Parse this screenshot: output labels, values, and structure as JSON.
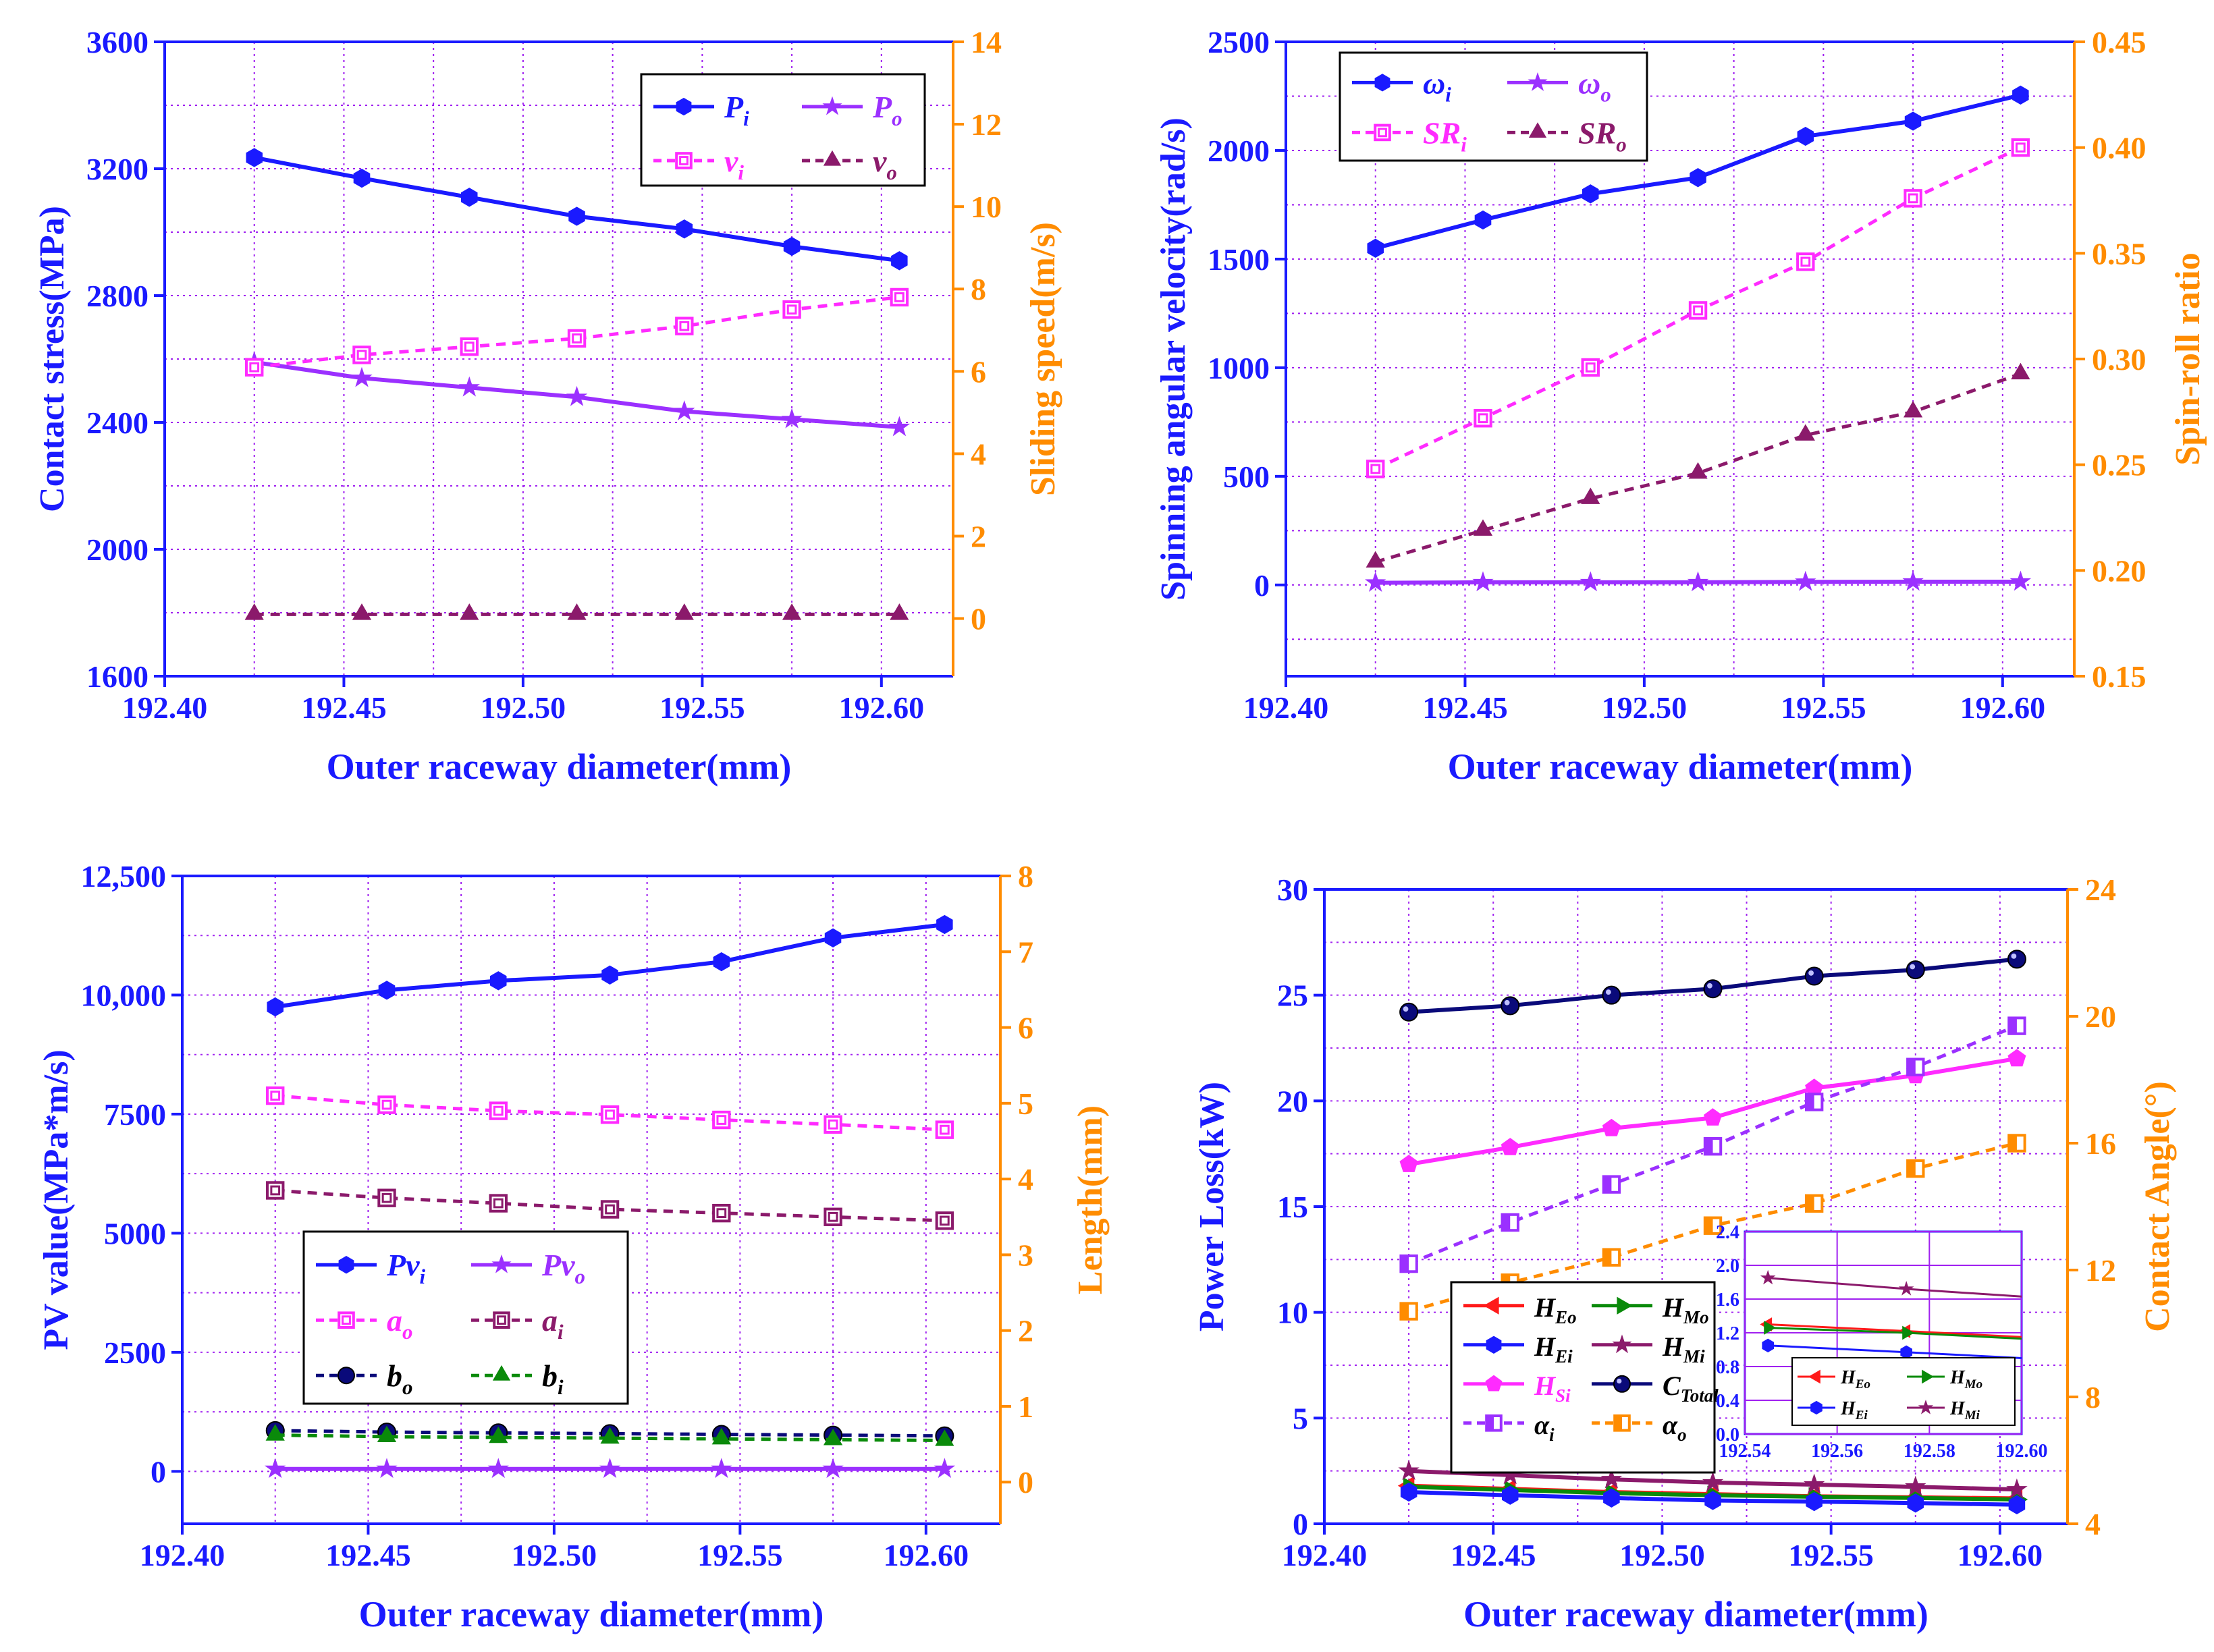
{
  "colors": {
    "axis_left": "#1a1aff",
    "axis_right": "#ff8c00",
    "grid": "#a020f0",
    "blue": "#1a1aff",
    "purple": "#9b30ff",
    "magenta": "#ff2bff",
    "darkmagenta": "#8b1a6b",
    "navy": "#0a0a7a",
    "green": "#0a8a0a",
    "red": "#ff1a1a",
    "orange": "#ff8c00",
    "black": "#000000"
  },
  "chart_data": [
    {
      "id": "a",
      "type": "line",
      "xlabel": "Outer raceway diameter(mm)",
      "ylabel": "Contact stress(MPa)",
      "y2label": "Sliding speed(m/s)",
      "xlim": [
        192.4,
        192.62
      ],
      "xticks": [
        "192.40",
        "192.45",
        "192.50",
        "192.55",
        "192.60"
      ],
      "ylim": [
        1600,
        3600
      ],
      "yticks": [
        "1600",
        "2000",
        "2400",
        "2800",
        "3200",
        "3600"
      ],
      "y2lim": [
        -1.4,
        14
      ],
      "y2ticks": [
        "0",
        "2",
        "4",
        "6",
        "8",
        "10",
        "12",
        "14"
      ],
      "x": [
        192.425,
        192.455,
        192.485,
        192.515,
        192.545,
        192.575,
        192.605
      ],
      "series": [
        {
          "name": "P",
          "sub": "i",
          "axis": "left",
          "color": "blue",
          "dash": false,
          "marker": "hexagon",
          "values": [
            3235,
            3170,
            3110,
            3050,
            3010,
            2955,
            2910
          ]
        },
        {
          "name": "P",
          "sub": "o",
          "axis": "left",
          "color": "purple",
          "dash": false,
          "marker": "star",
          "values": [
            2590,
            2540,
            2510,
            2480,
            2435,
            2410,
            2385
          ]
        },
        {
          "name": "v",
          "sub": "i",
          "axis": "right",
          "color": "magenta",
          "dash": true,
          "marker": "square",
          "values": [
            6.1,
            6.4,
            6.6,
            6.8,
            7.1,
            7.5,
            7.8
          ]
        },
        {
          "name": "v",
          "sub": "o",
          "axis": "right",
          "color": "darkmagenta",
          "dash": true,
          "marker": "triangle",
          "values": [
            0.1,
            0.1,
            0.1,
            0.1,
            0.1,
            0.1,
            0.1
          ]
        }
      ],
      "legend": {
        "placement": "top-right",
        "columns": 2
      }
    },
    {
      "id": "b",
      "type": "line",
      "xlabel": "Outer raceway diameter(mm)",
      "ylabel": "Spinning angular velocity(rad/s)",
      "y2label": "Spin-roll ratio",
      "xlim": [
        192.4,
        192.62
      ],
      "xticks": [
        "192.40",
        "192.45",
        "192.50",
        "192.55",
        "192.60"
      ],
      "ylim": [
        -420,
        2500
      ],
      "yticks": [
        "0",
        "500",
        "1000",
        "1500",
        "2000",
        "2500"
      ],
      "y2lim": [
        0.15,
        0.45
      ],
      "y2ticks": [
        "0.15",
        "0.20",
        "0.25",
        "0.30",
        "0.35",
        "0.40",
        "0.45"
      ],
      "x": [
        192.425,
        192.455,
        192.485,
        192.515,
        192.545,
        192.575,
        192.605
      ],
      "series": [
        {
          "name": "ω",
          "sub": "i",
          "axis": "left",
          "color": "blue",
          "dash": false,
          "marker": "hexagon",
          "values": [
            1550,
            1680,
            1800,
            1875,
            2065,
            2135,
            2255
          ]
        },
        {
          "name": "ω",
          "sub": "o",
          "axis": "left",
          "color": "purple",
          "dash": false,
          "marker": "star",
          "values": [
            10,
            12,
            12,
            12,
            14,
            15,
            15
          ]
        },
        {
          "name": "SR",
          "sub": "i",
          "axis": "right",
          "color": "magenta",
          "dash": true,
          "marker": "square",
          "values": [
            0.248,
            0.272,
            0.296,
            0.323,
            0.346,
            0.376,
            0.4
          ]
        },
        {
          "name": "SR",
          "sub": "o",
          "axis": "right",
          "color": "darkmagenta",
          "dash": true,
          "marker": "triangle",
          "values": [
            0.204,
            0.219,
            0.234,
            0.246,
            0.264,
            0.275,
            0.293
          ]
        }
      ],
      "legend": {
        "placement": "top-left",
        "columns": 2
      }
    },
    {
      "id": "c",
      "type": "line",
      "xlabel": "Outer raceway diameter(mm)",
      "ylabel": "PV value(MPa*m/s)",
      "y2label": "Length(mm)",
      "xlim": [
        192.4,
        192.62
      ],
      "xticks": [
        "192.40",
        "192.45",
        "192.50",
        "192.55",
        "192.60"
      ],
      "ylim": [
        -1100,
        12500
      ],
      "yticks": [
        "0",
        "2500",
        "5000",
        "7500",
        "10,000",
        "12,500"
      ],
      "y2lim": [
        -0.55,
        8
      ],
      "y2ticks": [
        "0",
        "1",
        "2",
        "3",
        "4",
        "5",
        "6",
        "7",
        "8"
      ],
      "x": [
        192.425,
        192.455,
        192.485,
        192.515,
        192.545,
        192.575,
        192.605
      ],
      "series": [
        {
          "name": "Pv",
          "sub": "i",
          "axis": "left",
          "color": "blue",
          "dash": false,
          "marker": "hexagon",
          "values": [
            9750,
            10100,
            10300,
            10420,
            10700,
            11200,
            11480
          ]
        },
        {
          "name": "Pv",
          "sub": "o",
          "axis": "left",
          "color": "purple",
          "dash": false,
          "marker": "star",
          "values": [
            50,
            50,
            50,
            50,
            50,
            50,
            50
          ]
        },
        {
          "name": "a",
          "sub": "o",
          "axis": "right",
          "color": "magenta",
          "dash": true,
          "marker": "square",
          "values": [
            5.1,
            4.98,
            4.9,
            4.85,
            4.78,
            4.72,
            4.65
          ]
        },
        {
          "name": "a",
          "sub": "i",
          "axis": "right",
          "color": "darkmagenta",
          "dash": true,
          "marker": "square",
          "values": [
            3.85,
            3.75,
            3.68,
            3.6,
            3.55,
            3.5,
            3.45
          ]
        },
        {
          "name": "b",
          "sub": "o",
          "axis": "right",
          "color": "navy",
          "dash": true,
          "marker": "circle",
          "values": [
            0.68,
            0.66,
            0.65,
            0.64,
            0.63,
            0.62,
            0.61
          ]
        },
        {
          "name": "b",
          "sub": "i",
          "axis": "right",
          "color": "green",
          "dash": true,
          "marker": "triangle",
          "values": [
            0.62,
            0.6,
            0.59,
            0.58,
            0.57,
            0.56,
            0.55
          ]
        }
      ],
      "legend": {
        "placement": "center-left",
        "columns": 2
      }
    },
    {
      "id": "d",
      "type": "line",
      "xlabel": "Outer raceway diameter(mm)",
      "ylabel": "Power Loss(kW)",
      "y2label": "Contact Angle(°)",
      "xlim": [
        192.4,
        192.62
      ],
      "xticks": [
        "192.40",
        "192.45",
        "192.50",
        "192.55",
        "192.60"
      ],
      "ylim": [
        0,
        30
      ],
      "yticks": [
        "0",
        "5",
        "10",
        "15",
        "20",
        "25",
        "30"
      ],
      "y2lim": [
        4,
        24
      ],
      "y2ticks": [
        "4",
        "8",
        "12",
        "16",
        "20",
        "24"
      ],
      "x": [
        192.425,
        192.455,
        192.485,
        192.515,
        192.545,
        192.575,
        192.605
      ],
      "series": [
        {
          "name": "H",
          "sub": "Eo",
          "axis": "left",
          "color": "red",
          "dash": false,
          "marker": "triangle-left",
          "values": [
            1.8,
            1.65,
            1.5,
            1.4,
            1.3,
            1.25,
            1.2
          ]
        },
        {
          "name": "H",
          "sub": "Mo",
          "axis": "left",
          "color": "green",
          "dash": false,
          "marker": "triangle-right",
          "values": [
            1.75,
            1.6,
            1.45,
            1.35,
            1.28,
            1.22,
            1.15
          ]
        },
        {
          "name": "H",
          "sub": "Ei",
          "axis": "left",
          "color": "blue",
          "dash": false,
          "marker": "hexagon",
          "values": [
            1.5,
            1.35,
            1.22,
            1.1,
            1.05,
            0.98,
            0.9
          ]
        },
        {
          "name": "H",
          "sub": "Mi",
          "axis": "left",
          "color": "darkmagenta",
          "dash": false,
          "marker": "star",
          "values": [
            2.5,
            2.3,
            2.1,
            1.95,
            1.85,
            1.75,
            1.62
          ]
        },
        {
          "name": "H",
          "sub": "Si",
          "axis": "left",
          "color": "magenta",
          "dash": false,
          "marker": "pentagon",
          "values": [
            17.0,
            17.8,
            18.7,
            19.2,
            20.6,
            21.2,
            22.0
          ]
        },
        {
          "name": "C",
          "sub": "Total",
          "axis": "left",
          "color": "navy",
          "dash": false,
          "marker": "sphere",
          "values": [
            24.2,
            24.5,
            25.0,
            25.3,
            25.9,
            26.2,
            26.7
          ]
        },
        {
          "name": "α",
          "sub": "i",
          "axis": "right",
          "color": "purple",
          "dash": true,
          "marker": "half-square",
          "values": [
            12.2,
            13.5,
            14.7,
            15.9,
            17.3,
            18.4,
            19.7
          ]
        },
        {
          "name": "α",
          "sub": "o",
          "axis": "right",
          "color": "orange",
          "dash": true,
          "marker": "half-square",
          "values": [
            10.7,
            11.6,
            12.4,
            13.4,
            14.1,
            15.2,
            16.0
          ]
        }
      ],
      "legend": {
        "placement": "lower-left",
        "columns": 2
      },
      "inset": {
        "xlim": [
          192.54,
          192.6
        ],
        "xticks": [
          "192.54",
          "192.56",
          "192.58",
          "192.60"
        ],
        "ylim": [
          0,
          2.4
        ],
        "yticks": [
          "0.0",
          "0.4",
          "0.8",
          "1.2",
          "1.6",
          "2.0",
          "2.4"
        ],
        "series": [
          {
            "name": "H",
            "sub": "Eo",
            "color": "red",
            "marker": "triangle-left",
            "x": [
              192.545,
              192.575
            ],
            "values": [
              1.3,
              1.22
            ],
            "end": 1.15
          },
          {
            "name": "H",
            "sub": "Mo",
            "color": "green",
            "marker": "triangle-right",
            "x": [
              192.545,
              192.575
            ],
            "values": [
              1.26,
              1.2
            ],
            "end": 1.13
          },
          {
            "name": "H",
            "sub": "Ei",
            "color": "blue",
            "marker": "hexagon",
            "x": [
              192.545,
              192.575
            ],
            "values": [
              1.05,
              0.97
            ],
            "end": 0.9
          },
          {
            "name": "H",
            "sub": "Mi",
            "color": "darkmagenta",
            "marker": "star",
            "x": [
              192.545,
              192.575
            ],
            "values": [
              1.85,
              1.72
            ],
            "end": 1.63
          }
        ]
      }
    }
  ]
}
